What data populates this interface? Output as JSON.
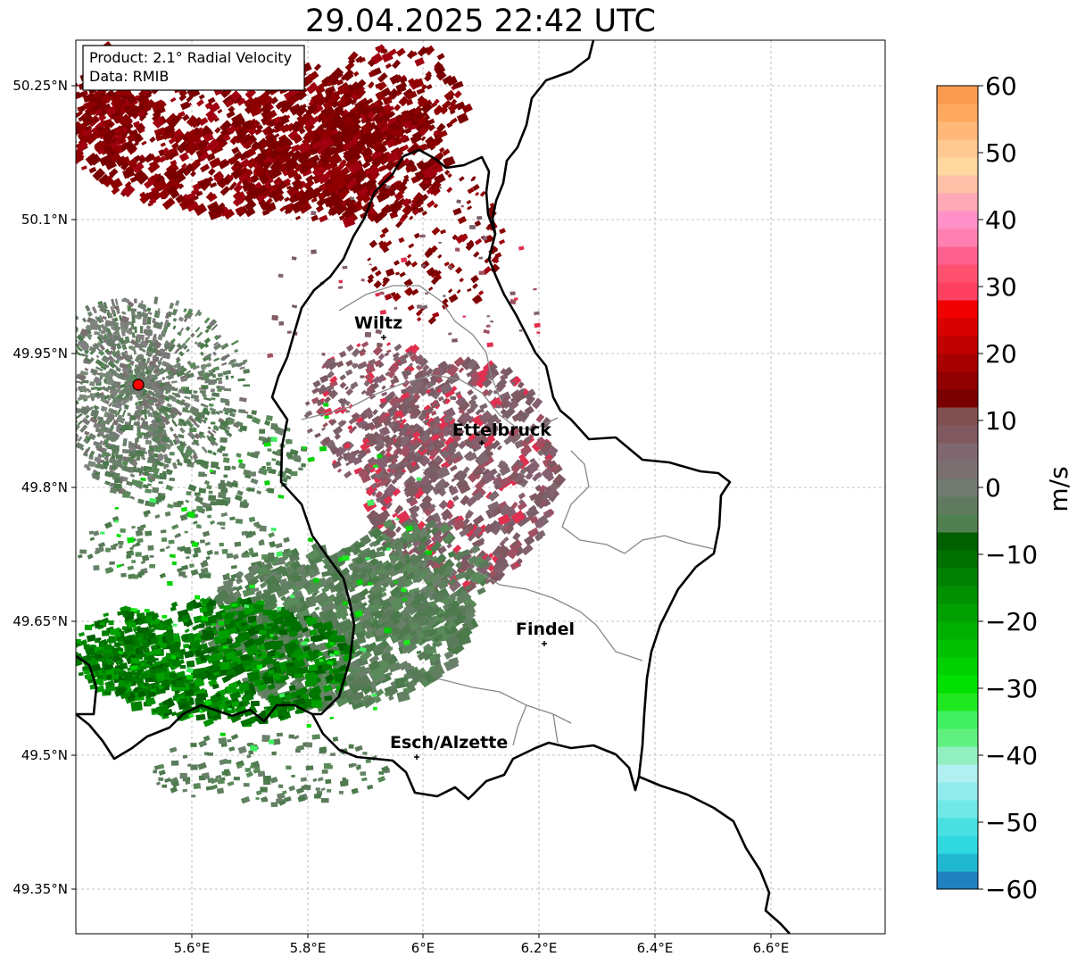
{
  "title": "29.04.2025 22:42 UTC",
  "info": {
    "product": "Product: 2.1° Radial Velocity",
    "data": "Data: RMIB"
  },
  "axes": {
    "lat_ticks": [
      "50.25°N",
      "50.1°N",
      "49.95°N",
      "49.8°N",
      "49.65°N",
      "49.5°N",
      "49.35°N"
    ],
    "lon_ticks": [
      "5.6°E",
      "5.8°E",
      "6°E",
      "6.2°E",
      "6.4°E",
      "6.6°E"
    ]
  },
  "cities": [
    {
      "name": "Wiltz"
    },
    {
      "name": "Ettelbruck"
    },
    {
      "name": "Findel"
    },
    {
      "name": "Esch/Alzette"
    }
  ],
  "colorbar": {
    "label": "m/s",
    "ticks": [
      "60",
      "50",
      "40",
      "30",
      "20",
      "10",
      "0",
      "−10",
      "−20",
      "−30",
      "−40",
      "−50",
      "−60"
    ],
    "colors": {
      "positive_high": "#f99a50",
      "positive_pink": "#ff80c8",
      "positive_red": "#ff0000",
      "positive_dark": "#7a0000",
      "zero": "#7a7070",
      "negative_dark": "#006000",
      "negative_green": "#00e000",
      "negative_cyan": "#30e0e0",
      "negative_low": "#2080c0"
    }
  }
}
